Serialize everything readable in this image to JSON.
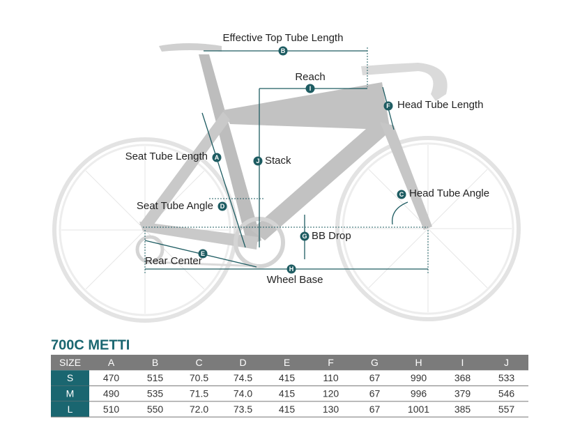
{
  "diagram": {
    "labels": [
      {
        "text": "Effective Top Tube Length",
        "letter": "B"
      },
      {
        "text": "Reach",
        "letter": "I"
      },
      {
        "text": "Head Tube Length",
        "letter": "F"
      },
      {
        "text": "Seat Tube Length",
        "letter": "A"
      },
      {
        "text": "Stack",
        "letter": "J"
      },
      {
        "text": "Seat Tube Angle",
        "letter": "D"
      },
      {
        "text": "Head Tube Angle",
        "letter": "C"
      },
      {
        "text": "BB Drop",
        "letter": "G"
      },
      {
        "text": "Rear Center",
        "letter": "E"
      },
      {
        "text": "Wheel Base",
        "letter": "H"
      }
    ]
  },
  "table": {
    "title": "700C METTI",
    "header": [
      "SIZE",
      "A",
      "B",
      "C",
      "D",
      "E",
      "F",
      "G",
      "H",
      "I",
      "J"
    ],
    "rows": [
      [
        "S",
        "470",
        "515",
        "70.5",
        "74.5",
        "415",
        "110",
        "67",
        "990",
        "368",
        "533"
      ],
      [
        "M",
        "490",
        "535",
        "71.5",
        "74.0",
        "415",
        "120",
        "67",
        "996",
        "379",
        "546"
      ],
      [
        "L",
        "510",
        "550",
        "72.0",
        "73.5",
        "415",
        "130",
        "67",
        "1001",
        "385",
        "557"
      ]
    ]
  }
}
